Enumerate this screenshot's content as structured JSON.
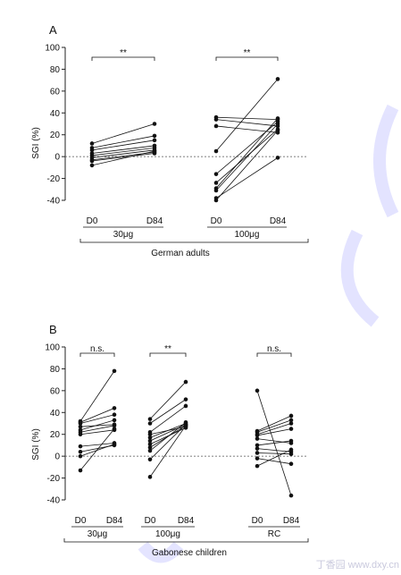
{
  "chart_data": [
    {
      "type": "line",
      "panel_label": "A",
      "ylabel": "SGI (%)",
      "ylim": [
        -40,
        100
      ],
      "yticks": [
        -40,
        -20,
        0,
        20,
        40,
        60,
        80,
        100
      ],
      "reference_line": 0,
      "groups": [
        {
          "name": "30μg",
          "x_labels": [
            "D0",
            "D84"
          ],
          "significance": "**",
          "pairs": [
            [
              12,
              30
            ],
            [
              8,
              19
            ],
            [
              6,
              15
            ],
            [
              3,
              10
            ],
            [
              1,
              8
            ],
            [
              -1,
              6
            ],
            [
              -3,
              4
            ],
            [
              -4,
              3
            ],
            [
              -8,
              5
            ]
          ]
        },
        {
          "name": "100μg",
          "x_labels": [
            "D0",
            "D84"
          ],
          "significance": "**",
          "pairs": [
            [
              36,
              34
            ],
            [
              34,
              28
            ],
            [
              28,
              22
            ],
            [
              5,
              71
            ],
            [
              -16,
              32
            ],
            [
              -24,
              25
            ],
            [
              -29,
              35
            ],
            [
              -31,
              30
            ],
            [
              -38,
              -1
            ],
            [
              -40,
              24
            ]
          ]
        }
      ],
      "footer_label": "German adults",
      "grid": false
    },
    {
      "type": "line",
      "panel_label": "B",
      "ylabel": "SGI (%)",
      "ylim": [
        -40,
        100
      ],
      "yticks": [
        -40,
        -20,
        0,
        20,
        40,
        60,
        80,
        100
      ],
      "reference_line": 0,
      "groups": [
        {
          "name": "30μg",
          "x_labels": [
            "D0",
            "D84"
          ],
          "significance": "n.s.",
          "pairs": [
            [
              32,
              78
            ],
            [
              31,
              44
            ],
            [
              30,
              38
            ],
            [
              27,
              29
            ],
            [
              24,
              33
            ],
            [
              22,
              28
            ],
            [
              20,
              24
            ],
            [
              9,
              12
            ],
            [
              4,
              10
            ],
            [
              0,
              11
            ],
            [
              -13,
              25
            ]
          ]
        },
        {
          "name": "100μg",
          "x_labels": [
            "D0",
            "D84"
          ],
          "significance": "**",
          "pairs": [
            [
              34,
              68
            ],
            [
              30,
              52
            ],
            [
              22,
              46
            ],
            [
              20,
              27
            ],
            [
              17,
              30
            ],
            [
              14,
              29
            ],
            [
              11,
              26
            ],
            [
              8,
              28
            ],
            [
              5,
              31
            ],
            [
              -3,
              29
            ],
            [
              -19,
              28
            ]
          ]
        },
        {
          "name": "RC",
          "x_labels": [
            "D0",
            "D84"
          ],
          "significance": "n.s.",
          "pairs": [
            [
              60,
              -36
            ],
            [
              23,
              37
            ],
            [
              22,
              33
            ],
            [
              20,
              30
            ],
            [
              19,
              25
            ],
            [
              16,
              12
            ],
            [
              10,
              14
            ],
            [
              7,
              4
            ],
            [
              3,
              2
            ],
            [
              -2,
              -7
            ],
            [
              -9,
              6
            ]
          ]
        }
      ],
      "footer_label": "Gabonese children",
      "grid": false
    }
  ],
  "watermark": "丁香园 www.dxy.cn"
}
